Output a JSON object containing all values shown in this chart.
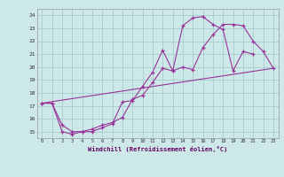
{
  "xlabel": "Windchill (Refroidissement éolien,°C)",
  "bg_color": "#cce8e8",
  "grid_color": "#aacccc",
  "line_color": "#993399",
  "xlim": [
    -0.5,
    23.5
  ],
  "ylim": [
    14.5,
    24.5
  ],
  "yticks": [
    15,
    16,
    17,
    18,
    19,
    20,
    21,
    22,
    23,
    24
  ],
  "xticks": [
    0,
    1,
    2,
    3,
    4,
    5,
    6,
    7,
    8,
    9,
    10,
    11,
    12,
    13,
    14,
    15,
    16,
    17,
    18,
    19,
    20,
    21,
    22,
    23
  ],
  "series1_x": [
    0,
    1,
    2,
    3,
    4,
    5,
    6,
    7,
    8,
    9,
    10,
    11,
    12,
    13,
    14,
    15,
    16,
    17,
    18,
    19,
    20,
    21
  ],
  "series1_y": [
    17.2,
    17.2,
    15.0,
    14.8,
    15.0,
    15.0,
    15.3,
    15.6,
    17.3,
    17.4,
    18.5,
    19.6,
    21.3,
    19.7,
    23.2,
    23.8,
    23.9,
    23.3,
    22.9,
    19.7,
    21.2,
    21.0
  ],
  "series2_x": [
    0,
    1,
    2,
    3,
    4,
    5,
    6,
    7,
    8,
    9,
    10,
    11,
    12,
    13,
    14,
    15,
    16,
    17,
    18,
    19,
    20,
    21,
    22,
    23
  ],
  "series2_y": [
    17.2,
    17.2,
    15.5,
    15.0,
    15.0,
    15.2,
    15.5,
    15.7,
    16.1,
    17.5,
    17.8,
    18.8,
    19.9,
    19.7,
    20.0,
    19.8,
    21.5,
    22.5,
    23.3,
    23.3,
    23.2,
    22.0,
    21.2,
    19.9
  ],
  "series3_x": [
    0,
    23
  ],
  "series3_y": [
    17.2,
    19.9
  ]
}
